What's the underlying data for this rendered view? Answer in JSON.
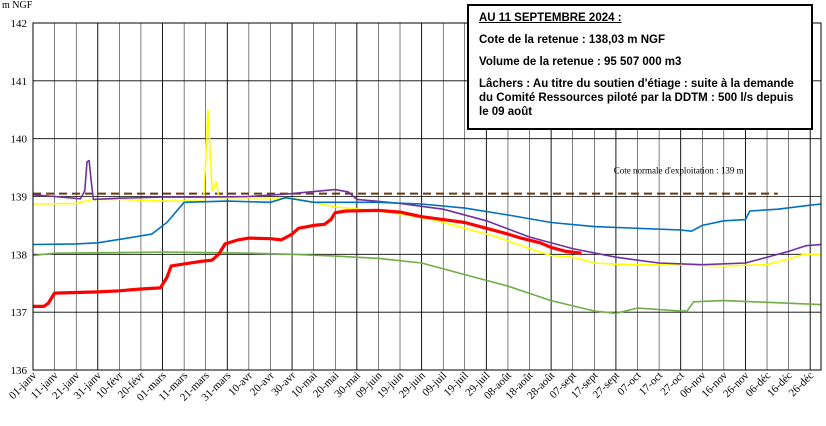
{
  "info_box": {
    "title": "AU 11 SEPTEMBRE 2024 :",
    "cote": "Cote de la retenue : 138,03 m NGF",
    "volume": "Volume de la retenue : 95 507 000 m3",
    "lachers": "Lâchers : Au titre du soutien d'étiage : suite à la demande du Comité Ressources piloté par la DDTM : 500 l/s depuis le 09 août"
  },
  "chart_data": {
    "type": "line",
    "ylabel": "m NGF",
    "ylim": [
      136,
      142
    ],
    "yticks": [
      136,
      137,
      138,
      139,
      140,
      141,
      142
    ],
    "xlim": [
      0,
      365
    ],
    "xtick_days": [
      0,
      10,
      20,
      30,
      40,
      50,
      60,
      70,
      80,
      90,
      100,
      110,
      120,
      130,
      140,
      150,
      160,
      170,
      180,
      190,
      200,
      210,
      220,
      230,
      240,
      250,
      260,
      270,
      280,
      290,
      300,
      310,
      320,
      330,
      340,
      350,
      360
    ],
    "xtick_labels": [
      "01-janv",
      "11-janv",
      "21-janv",
      "31-janv",
      "10-févr",
      "20-févr",
      "01-mars",
      "11-mars",
      "21-mars",
      "31-mars",
      "10-avr",
      "20-avr",
      "30-avr",
      "10-mai",
      "20-mai",
      "30-mai",
      "09-juin",
      "19-juin",
      "29-juin",
      "09-juil",
      "19-juil",
      "29-juil",
      "08-août",
      "18-août",
      "28-août",
      "07-sept",
      "17-sept",
      "27-sept",
      "07-oct",
      "17-oct",
      "27-oct",
      "06-nov",
      "16-nov",
      "26-nov",
      "06-déc",
      "16-déc",
      "26-déc"
    ],
    "grid_y": true,
    "grid_x": true,
    "reference_line": {
      "label": "Cote normale d'exploitation : 139 m",
      "y": 139.05,
      "color": "#6b3a12"
    },
    "series": [
      {
        "color": "#ffff00",
        "points": [
          [
            0,
            138.87
          ],
          [
            20,
            138.88
          ],
          [
            28,
            138.95
          ],
          [
            40,
            138.95
          ],
          [
            60,
            138.92
          ],
          [
            79,
            138.92
          ],
          [
            80,
            139.6
          ],
          [
            81,
            140.5
          ],
          [
            83,
            139.1
          ],
          [
            85,
            139.25
          ],
          [
            86,
            138.98
          ],
          [
            100,
            138.98
          ],
          [
            120,
            138.97
          ],
          [
            140,
            138.82
          ],
          [
            160,
            138.75
          ],
          [
            170,
            138.7
          ],
          [
            185,
            138.6
          ],
          [
            200,
            138.45
          ],
          [
            215,
            138.3
          ],
          [
            230,
            138.1
          ],
          [
            240,
            137.98
          ],
          [
            250,
            137.95
          ],
          [
            260,
            137.85
          ],
          [
            270,
            137.83
          ],
          [
            280,
            137.82
          ],
          [
            300,
            137.82
          ],
          [
            320,
            137.8
          ],
          [
            340,
            137.82
          ],
          [
            350,
            137.92
          ],
          [
            357,
            138.0
          ],
          [
            365,
            138.0
          ]
        ]
      },
      {
        "color": "#7030a0",
        "points": [
          [
            0,
            139.03
          ],
          [
            10,
            139.0
          ],
          [
            22,
            138.96
          ],
          [
            24,
            139.1
          ],
          [
            25,
            139.6
          ],
          [
            26,
            139.62
          ],
          [
            27,
            139.25
          ],
          [
            28,
            138.95
          ],
          [
            40,
            138.97
          ],
          [
            60,
            138.99
          ],
          [
            80,
            138.99
          ],
          [
            100,
            139.0
          ],
          [
            120,
            139.05
          ],
          [
            140,
            139.12
          ],
          [
            146,
            139.08
          ],
          [
            150,
            138.95
          ],
          [
            170,
            138.88
          ],
          [
            190,
            138.78
          ],
          [
            210,
            138.58
          ],
          [
            230,
            138.3
          ],
          [
            250,
            138.1
          ],
          [
            270,
            137.95
          ],
          [
            290,
            137.85
          ],
          [
            310,
            137.82
          ],
          [
            330,
            137.85
          ],
          [
            350,
            138.05
          ],
          [
            358,
            138.15
          ],
          [
            365,
            138.17
          ]
        ]
      },
      {
        "color": "#0070c0",
        "points": [
          [
            0,
            138.17
          ],
          [
            20,
            138.18
          ],
          [
            30,
            138.2
          ],
          [
            42,
            138.27
          ],
          [
            55,
            138.35
          ],
          [
            62,
            138.55
          ],
          [
            70,
            138.9
          ],
          [
            90,
            138.92
          ],
          [
            110,
            138.9
          ],
          [
            117,
            138.98
          ],
          [
            130,
            138.9
          ],
          [
            160,
            138.9
          ],
          [
            180,
            138.87
          ],
          [
            200,
            138.8
          ],
          [
            220,
            138.68
          ],
          [
            240,
            138.55
          ],
          [
            260,
            138.48
          ],
          [
            280,
            138.45
          ],
          [
            300,
            138.42
          ],
          [
            305,
            138.4
          ],
          [
            310,
            138.5
          ],
          [
            320,
            138.58
          ],
          [
            330,
            138.6
          ],
          [
            332,
            138.75
          ],
          [
            345,
            138.78
          ],
          [
            360,
            138.85
          ],
          [
            365,
            138.87
          ]
        ]
      },
      {
        "color": "#70ad47",
        "points": [
          [
            0,
            137.98
          ],
          [
            10,
            138.02
          ],
          [
            40,
            138.03
          ],
          [
            60,
            138.04
          ],
          [
            80,
            138.03
          ],
          [
            100,
            138.02
          ],
          [
            120,
            138.0
          ],
          [
            140,
            137.97
          ],
          [
            160,
            137.93
          ],
          [
            180,
            137.85
          ],
          [
            200,
            137.65
          ],
          [
            220,
            137.45
          ],
          [
            240,
            137.2
          ],
          [
            260,
            137.02
          ],
          [
            270,
            136.98
          ],
          [
            280,
            137.07
          ],
          [
            300,
            137.02
          ],
          [
            303,
            137.02
          ],
          [
            306,
            137.18
          ],
          [
            320,
            137.2
          ],
          [
            340,
            137.17
          ],
          [
            365,
            137.13
          ]
        ]
      },
      {
        "color": "#ff0000",
        "width": 3.2,
        "points": [
          [
            0,
            137.1
          ],
          [
            5,
            137.1
          ],
          [
            7,
            137.15
          ],
          [
            10,
            137.33
          ],
          [
            30,
            137.35
          ],
          [
            40,
            137.37
          ],
          [
            50,
            137.4
          ],
          [
            59,
            137.42
          ],
          [
            62,
            137.6
          ],
          [
            64,
            137.8
          ],
          [
            78,
            137.88
          ],
          [
            83,
            137.9
          ],
          [
            86,
            138.0
          ],
          [
            89,
            138.18
          ],
          [
            95,
            138.25
          ],
          [
            100,
            138.28
          ],
          [
            110,
            138.27
          ],
          [
            115,
            138.25
          ],
          [
            120,
            138.35
          ],
          [
            123,
            138.45
          ],
          [
            130,
            138.5
          ],
          [
            135,
            138.52
          ],
          [
            138,
            138.6
          ],
          [
            140,
            138.72
          ],
          [
            145,
            138.75
          ],
          [
            160,
            138.76
          ],
          [
            170,
            138.73
          ],
          [
            180,
            138.65
          ],
          [
            190,
            138.6
          ],
          [
            200,
            138.55
          ],
          [
            210,
            138.45
          ],
          [
            220,
            138.35
          ],
          [
            226,
            138.28
          ],
          [
            235,
            138.2
          ],
          [
            240,
            138.12
          ],
          [
            247,
            138.05
          ],
          [
            254,
            138.02
          ]
        ]
      }
    ]
  }
}
